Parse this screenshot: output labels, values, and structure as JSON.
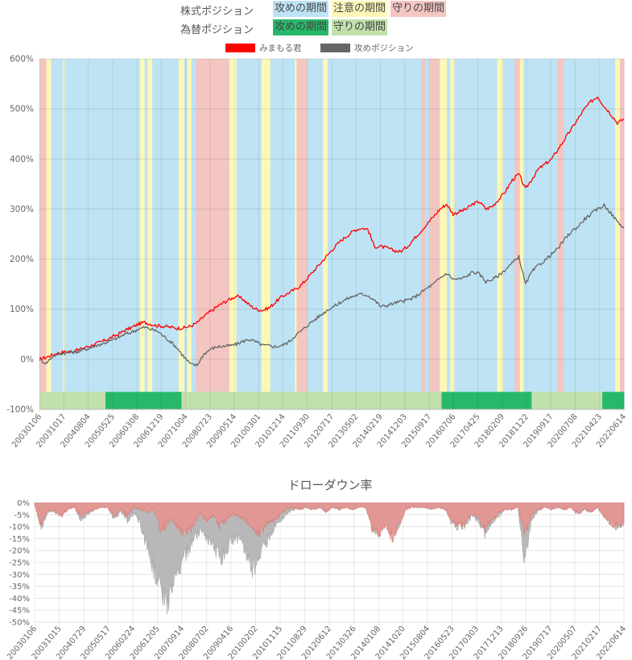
{
  "legend": {
    "stock_position_label": "株式ポジション",
    "fx_position_label": "為替ポジション",
    "stock_states": [
      {
        "label": "攻めの期間",
        "color": "#bde3f4"
      },
      {
        "label": "注意の期間",
        "color": "#fdf8b8"
      },
      {
        "label": "守りの期間",
        "color": "#f4c6c2"
      }
    ],
    "fx_states": [
      {
        "label": "攻めの期間",
        "color": "#27b86a"
      },
      {
        "label": "守りの期間",
        "color": "#c1e0ab"
      }
    ]
  },
  "chart_data": [
    {
      "type": "line",
      "title": "",
      "series": [
        {
          "name": "みまもる君",
          "color": "#ff0000",
          "values": [
            0,
            4,
            9,
            13,
            15,
            16,
            19,
            24,
            28,
            33,
            38,
            44,
            50,
            58,
            63,
            70,
            74,
            70,
            67,
            66,
            64,
            62,
            63,
            66,
            73,
            85,
            95,
            105,
            113,
            120,
            126,
            120,
            108,
            100,
            98,
            103,
            115,
            126,
            133,
            140,
            150,
            165,
            180,
            195,
            210,
            225,
            238,
            248,
            258,
            262,
            260,
            225,
            225,
            222,
            217,
            215,
            225,
            240,
            255,
            270,
            285,
            300,
            310,
            290,
            295,
            300,
            310,
            315,
            300,
            306,
            320,
            336,
            358,
            370,
            340,
            360,
            380,
            390,
            400,
            420,
            440,
            460,
            480,
            500,
            515,
            525,
            505,
            490,
            472,
            480
          ]
        },
        {
          "name": "攻めポジション",
          "color": "#666666",
          "values": [
            0,
            -8,
            6,
            11,
            13,
            14,
            16,
            20,
            24,
            29,
            33,
            38,
            43,
            50,
            54,
            60,
            64,
            60,
            56,
            45,
            35,
            22,
            5,
            -10,
            -12,
            10,
            20,
            25,
            26,
            27,
            30,
            36,
            40,
            34,
            28,
            27,
            25,
            28,
            35,
            48,
            58,
            70,
            80,
            90,
            100,
            107,
            115,
            122,
            127,
            130,
            128,
            118,
            105,
            108,
            112,
            115,
            118,
            123,
            132,
            142,
            150,
            162,
            172,
            160,
            160,
            165,
            175,
            170,
            155,
            160,
            168,
            180,
            192,
            205,
            150,
            175,
            188,
            198,
            210,
            222,
            240,
            255,
            265,
            280,
            290,
            300,
            308,
            292,
            275,
            262
          ]
        }
      ],
      "x_tick_labels": [
        "20030106",
        "20031017",
        "20040804",
        "20050525",
        "20060308",
        "20061219",
        "20071004",
        "20080723",
        "20090514",
        "20100301",
        "20101214",
        "20110930",
        "20120717",
        "20130502",
        "20140219",
        "20141203",
        "20150917",
        "20160706",
        "20170425",
        "20180209",
        "20181122",
        "20190917",
        "20200708",
        "20210423",
        "20220614"
      ],
      "y_tick_labels": [
        "600%",
        "500%",
        "400%",
        "300%",
        "200%",
        "100%",
        "0%",
        "-100%"
      ],
      "ylim": [
        -100,
        600
      ],
      "stock_regime_bands": [
        {
          "from": 0.0,
          "to": 0.012,
          "state": "守りの期間"
        },
        {
          "from": 0.012,
          "to": 0.02,
          "state": "注意の期間"
        },
        {
          "from": 0.02,
          "to": 0.04,
          "state": "攻めの期間"
        },
        {
          "from": 0.04,
          "to": 0.043,
          "state": "注意の期間"
        },
        {
          "from": 0.043,
          "to": 0.172,
          "state": "攻めの期間"
        },
        {
          "from": 0.172,
          "to": 0.18,
          "state": "注意の期間"
        },
        {
          "from": 0.18,
          "to": 0.185,
          "state": "攻めの期間"
        },
        {
          "from": 0.185,
          "to": 0.193,
          "state": "注意の期間"
        },
        {
          "from": 0.193,
          "to": 0.238,
          "state": "攻めの期間"
        },
        {
          "from": 0.238,
          "to": 0.248,
          "state": "注意の期間"
        },
        {
          "from": 0.248,
          "to": 0.253,
          "state": "攻めの期間"
        },
        {
          "from": 0.253,
          "to": 0.26,
          "state": "注意の期間"
        },
        {
          "from": 0.26,
          "to": 0.268,
          "state": "攻めの期間"
        },
        {
          "from": 0.268,
          "to": 0.325,
          "state": "守りの期間"
        },
        {
          "from": 0.325,
          "to": 0.337,
          "state": "注意の期間"
        },
        {
          "from": 0.337,
          "to": 0.38,
          "state": "攻めの期間"
        },
        {
          "from": 0.38,
          "to": 0.395,
          "state": "注意の期間"
        },
        {
          "from": 0.395,
          "to": 0.437,
          "state": "攻めの期間"
        },
        {
          "from": 0.437,
          "to": 0.44,
          "state": "注意の期間"
        },
        {
          "from": 0.44,
          "to": 0.458,
          "state": "守りの期間"
        },
        {
          "from": 0.458,
          "to": 0.485,
          "state": "攻めの期間"
        },
        {
          "from": 0.485,
          "to": 0.493,
          "state": "注意の期間"
        },
        {
          "from": 0.493,
          "to": 0.653,
          "state": "攻めの期間"
        },
        {
          "from": 0.653,
          "to": 0.661,
          "state": "守りの期間"
        },
        {
          "from": 0.661,
          "to": 0.668,
          "state": "攻めの期間"
        },
        {
          "from": 0.668,
          "to": 0.685,
          "state": "守りの期間"
        },
        {
          "from": 0.685,
          "to": 0.697,
          "state": "注意の期間"
        },
        {
          "from": 0.697,
          "to": 0.703,
          "state": "攻めの期間"
        },
        {
          "from": 0.703,
          "to": 0.71,
          "state": "注意の期間"
        },
        {
          "from": 0.71,
          "to": 0.783,
          "state": "攻めの期間"
        },
        {
          "from": 0.783,
          "to": 0.793,
          "state": "注意の期間"
        },
        {
          "from": 0.793,
          "to": 0.813,
          "state": "攻めの期間"
        },
        {
          "from": 0.813,
          "to": 0.822,
          "state": "守りの期間"
        },
        {
          "from": 0.822,
          "to": 0.828,
          "state": "注意の期間"
        },
        {
          "from": 0.828,
          "to": 0.887,
          "state": "攻めの期間"
        },
        {
          "from": 0.887,
          "to": 0.897,
          "state": "守りの期間"
        },
        {
          "from": 0.897,
          "to": 0.985,
          "state": "攻めの期間"
        },
        {
          "from": 0.985,
          "to": 0.993,
          "state": "注意の期間"
        },
        {
          "from": 0.993,
          "to": 1.0,
          "state": "守りの期間"
        }
      ],
      "fx_regime_bands": [
        {
          "from": 0.0,
          "to": 0.113,
          "state": "守りの期間"
        },
        {
          "from": 0.113,
          "to": 0.243,
          "state": "攻めの期間"
        },
        {
          "from": 0.243,
          "to": 0.688,
          "state": "守りの期間"
        },
        {
          "from": 0.688,
          "to": 0.842,
          "state": "攻めの期間"
        },
        {
          "from": 0.842,
          "to": 0.963,
          "state": "守りの期間"
        },
        {
          "from": 0.963,
          "to": 1.0,
          "state": "攻めの期間"
        }
      ]
    },
    {
      "type": "area",
      "title": "ドローダウン率",
      "series": [
        {
          "name": "みまもる君",
          "color": "#e8908c",
          "values": [
            -1,
            -10,
            -3,
            -4,
            -6,
            -3,
            -2,
            -6,
            -4,
            -3,
            -2,
            -2,
            -6,
            -3,
            -6,
            -2,
            -3,
            -4,
            -3,
            -12,
            -10,
            -8,
            -12,
            -14,
            -10,
            -5,
            -8,
            -6,
            -11,
            -7,
            -5,
            -6,
            -8,
            -12,
            -14,
            -9,
            -8,
            -6,
            -3,
            -2,
            -3,
            -2,
            -3,
            -2,
            -4,
            -2,
            -3,
            -2,
            -3,
            -2,
            -2,
            -12,
            -14,
            -10,
            -16,
            -10,
            -3,
            -2,
            -2,
            -2,
            -3,
            -2,
            -3,
            -8,
            -10,
            -9,
            -5,
            -7,
            -12,
            -8,
            -5,
            -3,
            -3,
            -2,
            -15,
            -5,
            -3,
            -2,
            -3,
            -2,
            -3,
            -2,
            -5,
            -3,
            -4,
            -2,
            -6,
            -9,
            -11,
            -8
          ]
        },
        {
          "name": "攻めポジション",
          "color": "#b8b8b8",
          "values": [
            -1,
            -12,
            -4,
            -4,
            -6,
            -3,
            -2,
            -8,
            -5,
            -3,
            -2,
            -2,
            -7,
            -4,
            -8,
            -5,
            -10,
            -20,
            -30,
            -40,
            -48,
            -40,
            -30,
            -22,
            -16,
            -12,
            -15,
            -20,
            -26,
            -20,
            -17,
            -15,
            -22,
            -30,
            -25,
            -18,
            -12,
            -8,
            -5,
            -3,
            -3,
            -2,
            -3,
            -2,
            -4,
            -2,
            -3,
            -2,
            -3,
            -2,
            -2,
            -12,
            -14,
            -10,
            -16,
            -10,
            -3,
            -2,
            -2,
            -2,
            -3,
            -2,
            -3,
            -9,
            -11,
            -10,
            -6,
            -8,
            -14,
            -10,
            -6,
            -3,
            -3,
            -2,
            -27,
            -8,
            -4,
            -2,
            -3,
            -2,
            -3,
            -2,
            -5,
            -3,
            -4,
            -2,
            -6,
            -9,
            -11,
            -9
          ]
        }
      ],
      "x_tick_labels": [
        "20030106",
        "20031015",
        "20040729",
        "20050517",
        "20060224",
        "20061205",
        "20070914",
        "20080702",
        "20090416",
        "20100202",
        "20101115",
        "20110829",
        "20120612",
        "20130326",
        "20140108",
        "20141020",
        "20150804",
        "20160523",
        "20170303",
        "20171213",
        "20180926",
        "20190717",
        "20200507",
        "20210217",
        "20220614"
      ],
      "y_tick_labels": [
        "0%",
        "-5%",
        "-10%",
        "-15%",
        "-20%",
        "-25%",
        "-30%",
        "-35%",
        "-40%",
        "-45%",
        "-50%"
      ],
      "ylim": [
        -50,
        0
      ]
    }
  ]
}
